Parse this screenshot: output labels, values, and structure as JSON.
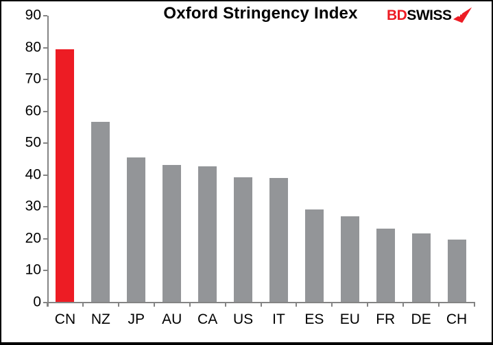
{
  "header": {
    "title": "Oxford Stringency Index"
  },
  "logo": {
    "bd": "BD",
    "swiss": "SWISS",
    "bd_color": "#ED1C24",
    "swiss_color": "#000000",
    "arrow_icon": "swiss-arrow-icon"
  },
  "chart_data": {
    "type": "bar",
    "title": "Oxford Stringency Index",
    "categories": [
      "CN",
      "NZ",
      "JP",
      "AU",
      "CA",
      "US",
      "IT",
      "ES",
      "EU",
      "FR",
      "DE",
      "CH"
    ],
    "values": [
      79.3,
      56.6,
      45.3,
      43.0,
      42.6,
      39.0,
      38.9,
      29.1,
      26.9,
      23.0,
      21.5,
      19.6
    ],
    "xlabel": "",
    "ylabel": "",
    "ylim": [
      0,
      90
    ],
    "yticks": [
      0,
      10,
      20,
      30,
      40,
      50,
      60,
      70,
      80,
      90
    ],
    "grid": false,
    "legend": false,
    "bar_color": "#939598",
    "highlight_color": "#ED1C24",
    "highlight_index": 0,
    "axis_color": "#848484"
  }
}
